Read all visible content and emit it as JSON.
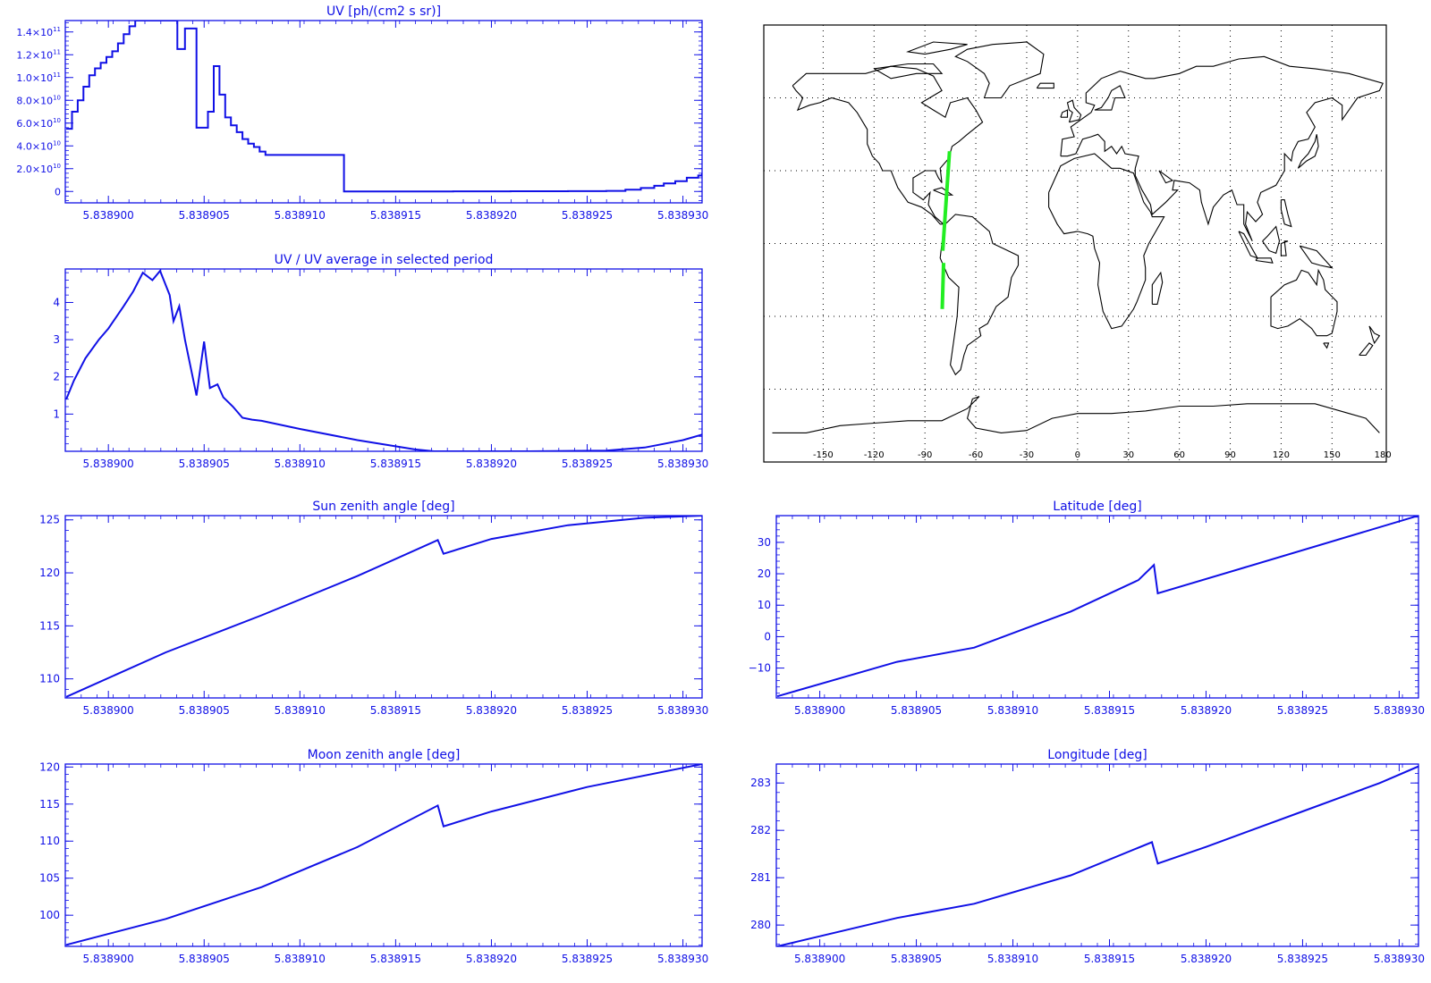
{
  "colors": {
    "plot": "#1010e6",
    "track": "#22ee22",
    "map": "#000000",
    "background": "#ffffff"
  },
  "x_axis": {
    "ticks": [
      5.8389,
      5.838905,
      5.83891,
      5.838915,
      5.83892,
      5.838925,
      5.83893
    ],
    "tick_labels": [
      "5.838900",
      "5.838905",
      "5.838910",
      "5.838915",
      "5.838920",
      "5.838925",
      "5.838930"
    ]
  },
  "chart_data": [
    {
      "id": "uv",
      "type": "line",
      "title": "UV [ph/(cm2 s sr)]",
      "xlabel": "",
      "ylabel": "",
      "xlim": [
        5.83889775,
        5.838931
      ],
      "ylim": [
        -10000000000.0,
        150000000000.0
      ],
      "step": true,
      "yticks": [
        0,
        20000000000.0,
        40000000000.0,
        60000000000.0,
        80000000000.0,
        100000000000.0,
        120000000000.0,
        140000000000.0
      ],
      "ytick_labels": [
        {
          "m": "0",
          "e": ""
        },
        {
          "m": "2.0×10",
          "e": "10"
        },
        {
          "m": "4.0×10",
          "e": "10"
        },
        {
          "m": "6.0×10",
          "e": "10"
        },
        {
          "m": "8.0×10",
          "e": "10"
        },
        {
          "m": "1.0×10",
          "e": "11"
        },
        {
          "m": "1.2×10",
          "e": "11"
        },
        {
          "m": "1.4×10",
          "e": "11"
        }
      ],
      "x": [
        5.8388978,
        5.8388981,
        5.8388984,
        5.8388987,
        5.838899,
        5.8388993,
        5.8388996,
        5.8388999,
        5.8389002,
        5.8389005,
        5.8389008,
        5.8389011,
        5.8389014,
        5.8389017,
        5.838902,
        5.8389025,
        5.838903,
        5.8389033,
        5.8389036,
        5.838904,
        5.8389043,
        5.8389046,
        5.838905,
        5.8389052,
        5.8389055,
        5.8389058,
        5.8389061,
        5.8389064,
        5.8389067,
        5.838907,
        5.8389073,
        5.8389076,
        5.8389079,
        5.8389082,
        5.8389122,
        5.8389123,
        5.838915,
        5.838918,
        5.838921,
        5.838924,
        5.838926,
        5.838927,
        5.8389278,
        5.8389285,
        5.838929,
        5.8389296,
        5.8389302,
        5.8389308,
        5.838931
      ],
      "y": [
        55000000000.0,
        70000000000.0,
        80000000000.0,
        92000000000.0,
        102000000000.0,
        108000000000.0,
        113000000000.0,
        118000000000.0,
        123000000000.0,
        130000000000.0,
        138000000000.0,
        145000000000.0,
        150000000000.0,
        150000000000.0,
        150000000000.0,
        150000000000.0,
        150000000000.0,
        150000000000.0,
        125000000000.0,
        143000000000.0,
        143000000000.0,
        56000000000.0,
        56000000000.0,
        70000000000.0,
        110000000000.0,
        85000000000.0,
        65000000000.0,
        58000000000.0,
        52000000000.0,
        46000000000.0,
        42000000000.0,
        39000000000.0,
        35000000000.0,
        32000000000.0,
        32000000000.0,
        0,
        0,
        100000000.0,
        200000000.0,
        300000000.0,
        500000000.0,
        1500000000.0,
        3000000000.0,
        5000000000.0,
        7000000000.0,
        9000000000.0,
        12000000000.0,
        14000000000.0,
        16000000000.0
      ]
    },
    {
      "id": "uv_ratio",
      "type": "line",
      "title": "UV / UV average in selected period",
      "xlabel": "",
      "ylabel": "",
      "xlim": [
        5.83889775,
        5.838931
      ],
      "ylim": [
        0,
        4.9
      ],
      "yticks": [
        1,
        2,
        3,
        4
      ],
      "ytick_labels": [
        "1",
        "2",
        "3",
        "4"
      ],
      "x": [
        5.8388978,
        5.8388982,
        5.8388988,
        5.8388995,
        5.8389,
        5.8389008,
        5.8389013,
        5.8389018,
        5.8389023,
        5.8389027,
        5.8389032,
        5.8389034,
        5.8389037,
        5.838904,
        5.8389046,
        5.838905,
        5.8389053,
        5.8389057,
        5.838906,
        5.8389065,
        5.838907,
        5.8389075,
        5.838908,
        5.83891,
        5.838913,
        5.838916,
        5.838917,
        5.838922,
        5.838926,
        5.838928,
        5.838929,
        5.83893,
        5.838931
      ],
      "y": [
        1.4,
        1.9,
        2.5,
        3.0,
        3.3,
        3.9,
        4.3,
        4.8,
        4.6,
        4.85,
        4.2,
        3.5,
        3.9,
        3.0,
        1.5,
        2.95,
        1.7,
        1.8,
        1.45,
        1.2,
        0.9,
        0.85,
        0.82,
        0.6,
        0.3,
        0.05,
        0.0,
        0.0,
        0.02,
        0.1,
        0.2,
        0.3,
        0.45
      ]
    },
    {
      "id": "sun_zenith",
      "type": "line",
      "title": "Sun zenith angle [deg]",
      "xlabel": "",
      "ylabel": "",
      "xlim": [
        5.83889775,
        5.838931
      ],
      "ylim": [
        108.2,
        125.4
      ],
      "yticks": [
        110,
        115,
        120,
        125
      ],
      "ytick_labels": [
        "110",
        "115",
        "120",
        "125"
      ],
      "x": [
        5.8388978,
        5.838903,
        5.838908,
        5.838913,
        5.8389172,
        5.8389175,
        5.83892,
        5.838924,
        5.838928,
        5.838931
      ],
      "y": [
        108.3,
        112.5,
        116.0,
        119.7,
        123.1,
        121.8,
        123.2,
        124.5,
        125.2,
        125.4
      ]
    },
    {
      "id": "latitude",
      "type": "line",
      "title": "Latitude [deg]",
      "xlabel": "",
      "ylabel": "",
      "xlim": [
        5.83889775,
        5.838931
      ],
      "ylim": [
        -19.5,
        38.5
      ],
      "yticks": [
        -10,
        0,
        10,
        20,
        30
      ],
      "ytick_labels": [
        "−10",
        "0",
        "10",
        "20",
        "30"
      ],
      "x": [
        5.8388978,
        5.838904,
        5.838908,
        5.838913,
        5.8389165,
        5.8389173,
        5.8389175,
        5.838922,
        5.838931
      ],
      "y": [
        -19.0,
        -8.0,
        -3.5,
        8.0,
        18.0,
        22.8,
        13.8,
        22.0,
        38.5
      ]
    },
    {
      "id": "moon_zenith",
      "type": "line",
      "title": "Moon zenith angle [deg]",
      "xlabel": "",
      "ylabel": "",
      "xlim": [
        5.83889775,
        5.838931
      ],
      "ylim": [
        95.8,
        120.4
      ],
      "yticks": [
        100,
        105,
        110,
        115,
        120
      ],
      "ytick_labels": [
        "100",
        "105",
        "110",
        "115",
        "120"
      ],
      "x": [
        5.8388978,
        5.838903,
        5.838908,
        5.838913,
        5.8389172,
        5.8389175,
        5.83892,
        5.838925,
        5.838931
      ],
      "y": [
        96.0,
        99.5,
        103.8,
        109.2,
        114.8,
        112.0,
        114.0,
        117.3,
        120.4
      ]
    },
    {
      "id": "longitude",
      "type": "line",
      "title": "Longitude [deg]",
      "xlabel": "",
      "ylabel": "",
      "xlim": [
        5.83889775,
        5.838931
      ],
      "ylim": [
        279.55,
        283.4
      ],
      "yticks": [
        280,
        281,
        282,
        283
      ],
      "ytick_labels": [
        "280",
        "281",
        "282",
        "283"
      ],
      "x": [
        5.8388978,
        5.838904,
        5.838908,
        5.838913,
        5.8389172,
        5.8389175,
        5.83892,
        5.838925,
        5.838929,
        5.838931
      ],
      "y": [
        279.55,
        280.15,
        280.45,
        281.05,
        281.75,
        281.3,
        281.65,
        282.4,
        283.0,
        283.35
      ]
    }
  ],
  "map": {
    "lon_ticks": [
      -150,
      -120,
      -90,
      -60,
      -30,
      0,
      30,
      60,
      90,
      120,
      150,
      180
    ],
    "lon_tick_labels": [
      "-150",
      "-120",
      "-90",
      "-60",
      "-30",
      "0",
      "30",
      "60",
      "90",
      "120",
      "150",
      "180"
    ],
    "track_segments": [
      [
        [
          -75.5,
          38.0
        ],
        [
          -79.5,
          -3.0
        ]
      ],
      [
        [
          -79.0,
          -8.0
        ],
        [
          -79.8,
          -27.0
        ]
      ]
    ]
  }
}
